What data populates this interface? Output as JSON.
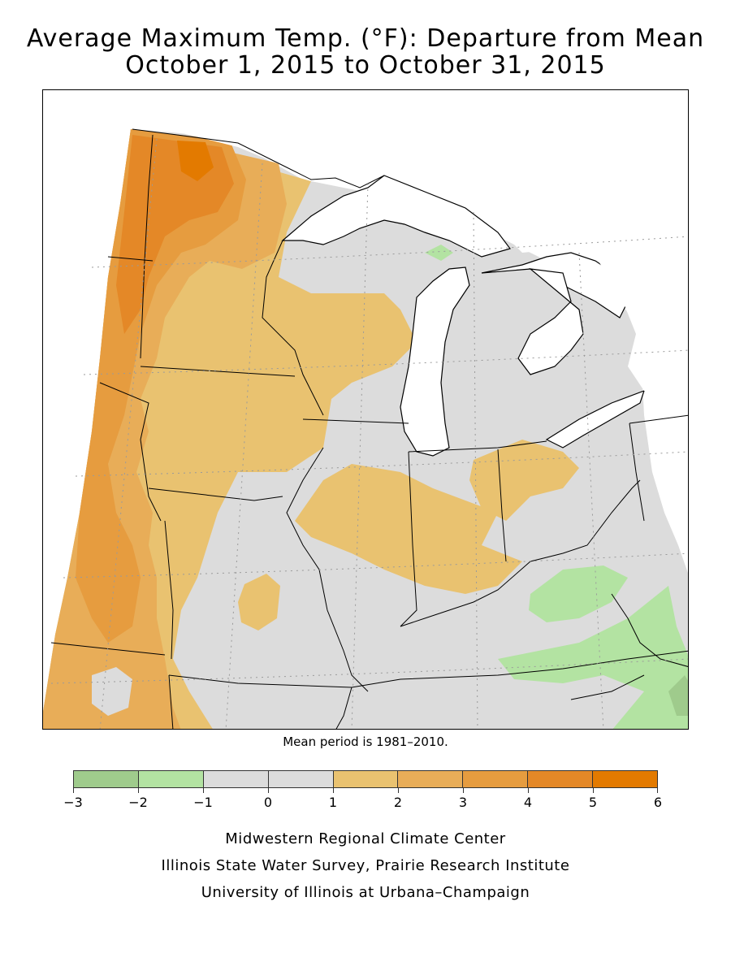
{
  "title_line1": "Average Maximum Temp. (°F): Departure from Mean",
  "title_line2": "October 1, 2015 to October 31, 2015",
  "mean_note": "Mean period is 1981–2010.",
  "legend": {
    "ticks": [
      "−3",
      "−2",
      "−1",
      "0",
      "1",
      "2",
      "3",
      "4",
      "5",
      "6"
    ],
    "colors": [
      "#9fcb8c",
      "#b3e3a2",
      "#dcdcdc",
      "#dcdcdc",
      "#e9c270",
      "#e8ad58",
      "#e69c3f",
      "#e48827",
      "#e37a00"
    ]
  },
  "credits": [
    "Midwestern Regional Climate Center",
    "Illinois State Water Survey, Prairie Research Institute",
    "University of Illinois at Urbana–Champaign"
  ],
  "map_colors": {
    "neutral": "#dcdcdc",
    "water": "#ffffff",
    "c1": "#e9c270",
    "c2": "#e8ad58",
    "c3": "#e69c3f",
    "c4": "#e48827",
    "c5": "#e37a00",
    "g1": "#b3e3a2",
    "g2": "#9fcb8c"
  }
}
